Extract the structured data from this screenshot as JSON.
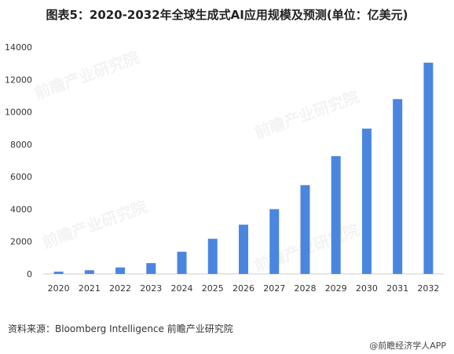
{
  "title": "图表5：2020-2032年全球生成式AI应用规模及预测(单位：亿美元)",
  "source": "资料来源：Bloomberg Intelligence 前瞻产业研究院",
  "brand": "@前瞻经济学人APP",
  "watermark": "前瞻产业研究院",
  "colors": {
    "bar": "#4a86e0",
    "axis": "#cccccc"
  },
  "chart_data": {
    "type": "bar",
    "title": "图表5：2020-2032年全球生成式AI应用规模及预测(单位：亿美元)",
    "xlabel": "",
    "ylabel": "",
    "categories": [
      "2020",
      "2021",
      "2022",
      "2023",
      "2024",
      "2025",
      "2026",
      "2027",
      "2028",
      "2029",
      "2030",
      "2031",
      "2032"
    ],
    "values": [
      140,
      230,
      400,
      670,
      1370,
      2170,
      3040,
      4000,
      5480,
      7270,
      8970,
      10790,
      13040
    ],
    "yticks": [
      0,
      2000,
      4000,
      6000,
      8000,
      10000,
      12000,
      14000
    ],
    "ylim": [
      0,
      14000
    ],
    "grid": false,
    "legend": "none"
  }
}
